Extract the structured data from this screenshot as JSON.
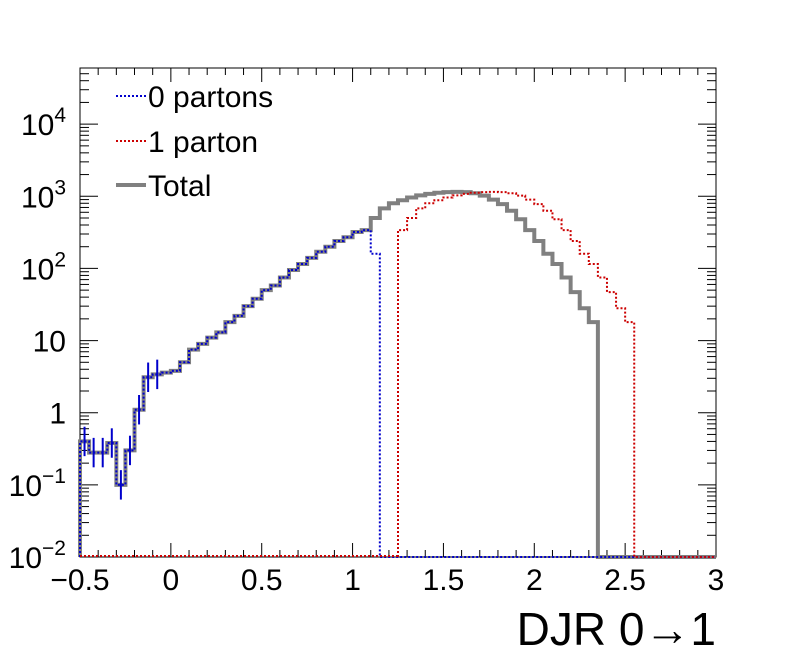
{
  "chart_data": {
    "type": "line",
    "xlabel": "DJR 0→1",
    "xlim": [
      -0.5,
      3.0
    ],
    "ylim": [
      0.01,
      60000
    ],
    "yscale": "log",
    "bin_width": 0.05,
    "x_ticks": [
      {
        "value": -0.5,
        "label": "−0.5"
      },
      {
        "value": 0,
        "label": "0"
      },
      {
        "value": 0.5,
        "label": "0.5"
      },
      {
        "value": 1,
        "label": "1"
      },
      {
        "value": 1.5,
        "label": "1.5"
      },
      {
        "value": 2,
        "label": "2"
      },
      {
        "value": 2.5,
        "label": "2.5"
      },
      {
        "value": 3,
        "label": "3"
      }
    ],
    "y_ticks": [
      {
        "value": 0.01,
        "base": "10",
        "exp": "−2"
      },
      {
        "value": 0.1,
        "base": "10",
        "exp": "−1"
      },
      {
        "value": 1,
        "base": "1",
        "exp": ""
      },
      {
        "value": 10,
        "base": "10",
        "exp": ""
      },
      {
        "value": 100,
        "base": "10",
        "exp": "2"
      },
      {
        "value": 1000,
        "base": "10",
        "exp": "3"
      },
      {
        "value": 10000,
        "base": "10",
        "exp": "4"
      }
    ],
    "legend_position": "top-left",
    "series": [
      {
        "name": "0 partons",
        "color": "#0000cc",
        "style": "dotted",
        "x_start": -0.5,
        "values": [
          0.4,
          0.28,
          0.28,
          0.38,
          0.1,
          0.3,
          1.1,
          3.1,
          3.4,
          3.6,
          3.8,
          5,
          7.5,
          9,
          11,
          13,
          18,
          22,
          30,
          38,
          50,
          58,
          75,
          95,
          115,
          140,
          170,
          200,
          240,
          270,
          320,
          340,
          160
        ]
      },
      {
        "name": "1 parton",
        "color": "#cc0000",
        "style": "dotted",
        "x_start": 1.25,
        "values": [
          340,
          500,
          680,
          800,
          880,
          960,
          1030,
          1080,
          1120,
          1140,
          1150,
          1140,
          1100,
          1020,
          900,
          780,
          630,
          480,
          340,
          240,
          160,
          115,
          75,
          47,
          28,
          18
        ]
      },
      {
        "name": "Total",
        "color": "#808080",
        "style": "solid",
        "x_start": -0.5,
        "values": [
          0.4,
          0.28,
          0.28,
          0.38,
          0.1,
          0.3,
          1.1,
          3.1,
          3.4,
          3.6,
          3.8,
          5,
          7.5,
          9,
          11,
          13,
          18,
          22,
          30,
          38,
          50,
          58,
          75,
          95,
          115,
          140,
          170,
          200,
          240,
          270,
          320,
          340,
          500,
          680,
          800,
          880,
          960,
          1030,
          1080,
          1120,
          1140,
          1150,
          1140,
          1100,
          1020,
          900,
          780,
          630,
          480,
          340,
          240,
          160,
          115,
          75,
          47,
          28,
          18
        ]
      }
    ]
  }
}
